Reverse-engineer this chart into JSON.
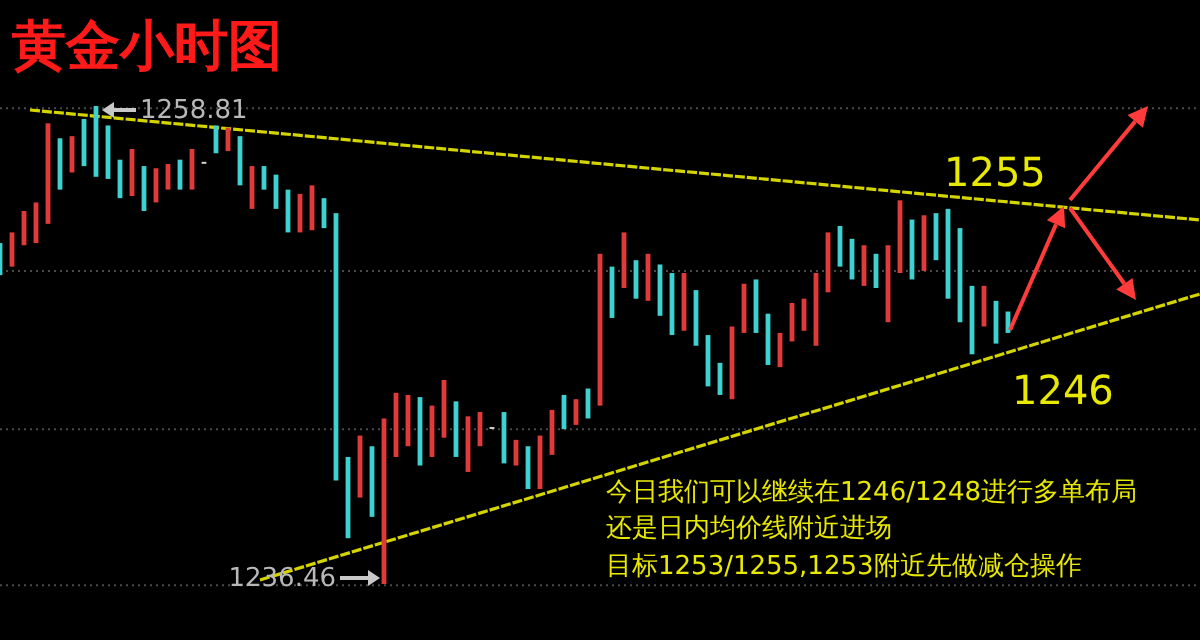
{
  "chart_data": {
    "type": "candlestick",
    "title": "黄金小时图",
    "categories": [
      null,
      null,
      null,
      null,
      null,
      null,
      null,
      null,
      null,
      null,
      null,
      null,
      null,
      null,
      null,
      null,
      null,
      null,
      null,
      null,
      null,
      null,
      null,
      null,
      null,
      null,
      null,
      null,
      null,
      null,
      null,
      null,
      null,
      null,
      null,
      null,
      null,
      null,
      null,
      null,
      null,
      null,
      null,
      null,
      null,
      null,
      null,
      null,
      null,
      null,
      null,
      null,
      null,
      null,
      null,
      null,
      null,
      null,
      null,
      null,
      null,
      null,
      null,
      null,
      null,
      null,
      null,
      null,
      null,
      null,
      null,
      null,
      null,
      null,
      null,
      null,
      null,
      null,
      null,
      null,
      null,
      null,
      null,
      null,
      null
    ],
    "ohlc": [
      [
        1252.4,
        1252.4,
        1250.9,
        1250.9
      ],
      [
        1251.3,
        1252.9,
        1251.3,
        1252.9
      ],
      [
        1252.3,
        1253.9,
        1252.3,
        1253.9
      ],
      [
        1252.4,
        1254.3,
        1252.4,
        1254.3
      ],
      [
        1253.3,
        1258.0,
        1253.3,
        1258.0
      ],
      [
        1257.3,
        1257.3,
        1254.9,
        1254.9
      ],
      [
        1255.7,
        1257.4,
        1255.7,
        1257.4
      ],
      [
        1258.2,
        1258.2,
        1256.0,
        1256.0
      ],
      [
        1258.81,
        1258.81,
        1255.5,
        1255.5
      ],
      [
        1257.9,
        1257.9,
        1255.4,
        1255.4
      ],
      [
        1256.3,
        1256.3,
        1254.5,
        1254.5
      ],
      [
        1254.6,
        1256.8,
        1254.6,
        1256.8
      ],
      [
        1256.0,
        1256.0,
        1253.9,
        1253.9
      ],
      [
        1254.3,
        1255.9,
        1254.3,
        1255.9
      ],
      [
        1254.9,
        1256.1,
        1254.9,
        1256.1
      ],
      [
        1256.3,
        1256.3,
        1254.9,
        1254.9
      ],
      [
        1254.9,
        1256.8,
        1254.9,
        1256.8
      ],
      [
        1256.2,
        1256.2,
        1256.2,
        1256.2
      ],
      [
        1257.9,
        1257.9,
        1256.6,
        1256.6
      ],
      [
        1256.7,
        1257.8,
        1256.7,
        1257.8
      ],
      [
        1257.4,
        1257.4,
        1255.1,
        1255.1
      ],
      [
        1254.0,
        1256.0,
        1254.0,
        1256.0
      ],
      [
        1256.0,
        1256.0,
        1254.9,
        1254.9
      ],
      [
        1255.6,
        1255.6,
        1254.0,
        1254.0
      ],
      [
        1254.9,
        1254.9,
        1252.9,
        1252.9
      ],
      [
        1252.9,
        1254.7,
        1252.9,
        1254.7
      ],
      [
        1253.0,
        1255.1,
        1253.0,
        1255.1
      ],
      [
        1254.5,
        1254.5,
        1253.1,
        1253.1
      ],
      [
        1253.8,
        1253.8,
        1241.3,
        1241.3
      ],
      [
        1242.4,
        1242.4,
        1238.6,
        1238.6
      ],
      [
        1240.5,
        1243.4,
        1240.5,
        1243.4
      ],
      [
        1242.9,
        1242.9,
        1239.6,
        1239.6
      ],
      [
        1236.46,
        1244.2,
        1236.46,
        1244.2
      ],
      [
        1242.4,
        1245.4,
        1242.4,
        1245.4
      ],
      [
        1242.9,
        1245.3,
        1242.9,
        1245.3
      ],
      [
        1245.2,
        1245.2,
        1242.0,
        1242.0
      ],
      [
        1242.4,
        1244.8,
        1242.4,
        1244.8
      ],
      [
        1243.3,
        1246.0,
        1243.3,
        1246.0
      ],
      [
        1245.0,
        1245.0,
        1242.4,
        1242.4
      ],
      [
        1241.7,
        1244.3,
        1241.7,
        1244.3
      ],
      [
        1242.9,
        1244.5,
        1242.9,
        1244.5
      ],
      [
        1243.8,
        1243.8,
        1243.8,
        1243.8
      ],
      [
        1244.5,
        1244.5,
        1242.1,
        1242.1
      ],
      [
        1242.0,
        1243.2,
        1242.0,
        1243.2
      ],
      [
        1242.9,
        1242.9,
        1240.9,
        1240.9
      ],
      [
        1240.9,
        1243.4,
        1240.9,
        1243.4
      ],
      [
        1242.5,
        1244.6,
        1242.5,
        1244.6
      ],
      [
        1245.3,
        1245.3,
        1243.7,
        1243.7
      ],
      [
        1243.9,
        1245.1,
        1243.9,
        1245.1
      ],
      [
        1245.6,
        1245.6,
        1244.2,
        1244.2
      ],
      [
        1244.8,
        1251.9,
        1244.8,
        1251.9
      ],
      [
        1251.3,
        1251.3,
        1248.9,
        1248.9
      ],
      [
        1250.3,
        1252.9,
        1250.3,
        1252.9
      ],
      [
        1251.6,
        1251.6,
        1249.8,
        1249.8
      ],
      [
        1249.7,
        1251.9,
        1249.7,
        1251.9
      ],
      [
        1251.4,
        1251.4,
        1249.0,
        1249.0
      ],
      [
        1251.0,
        1251.0,
        1248.1,
        1248.1
      ],
      [
        1248.3,
        1251.0,
        1248.3,
        1251.0
      ],
      [
        1250.2,
        1250.2,
        1247.6,
        1247.6
      ],
      [
        1248.1,
        1248.1,
        1245.7,
        1245.7
      ],
      [
        1246.8,
        1246.8,
        1245.3,
        1245.3
      ],
      [
        1245.1,
        1248.5,
        1245.1,
        1248.5
      ],
      [
        1248.2,
        1250.5,
        1248.2,
        1250.5
      ],
      [
        1250.7,
        1250.7,
        1248.2,
        1248.2
      ],
      [
        1249.1,
        1249.1,
        1246.7,
        1246.7
      ],
      [
        1246.6,
        1248.2,
        1246.6,
        1248.2
      ],
      [
        1247.8,
        1249.6,
        1247.8,
        1249.6
      ],
      [
        1248.3,
        1249.8,
        1248.3,
        1249.8
      ],
      [
        1247.6,
        1251.0,
        1247.6,
        1251.0
      ],
      [
        1250.1,
        1252.9,
        1250.1,
        1252.9
      ],
      [
        1253.2,
        1253.2,
        1251.3,
        1251.3
      ],
      [
        1252.6,
        1252.6,
        1250.7,
        1250.7
      ],
      [
        1250.4,
        1252.3,
        1250.4,
        1252.3
      ],
      [
        1251.9,
        1251.9,
        1250.3,
        1250.3
      ],
      [
        1248.7,
        1252.3,
        1248.7,
        1252.3
      ],
      [
        1251.0,
        1254.4,
        1251.0,
        1254.4
      ],
      [
        1253.5,
        1253.5,
        1250.7,
        1250.7
      ],
      [
        1251.1,
        1253.7,
        1251.1,
        1253.7
      ],
      [
        1253.8,
        1253.8,
        1251.6,
        1251.6
      ],
      [
        1254.0,
        1254.0,
        1249.8,
        1249.8
      ],
      [
        1253.1,
        1253.1,
        1248.7,
        1248.7
      ],
      [
        1250.4,
        1250.4,
        1247.2,
        1247.2
      ],
      [
        1248.5,
        1250.4,
        1248.5,
        1250.4
      ],
      [
        1249.7,
        1249.7,
        1247.7,
        1247.7
      ],
      [
        1249.2,
        1249.2,
        1248.2,
        1248.2
      ]
    ],
    "colors": [
      "#3fd0d0",
      "#e03a3a",
      "#e03a3a",
      "#e03a3a",
      "#e03a3a",
      "#3fd0d0",
      "#e03a3a",
      "#3fd0d0",
      "#3fd0d0",
      "#3fd0d0",
      "#3fd0d0",
      "#e03a3a",
      "#3fd0d0",
      "#e03a3a",
      "#e03a3a",
      "#3fd0d0",
      "#e03a3a",
      "#d0d0d0",
      "#3fd0d0",
      "#e03a3a",
      "#3fd0d0",
      "#e03a3a",
      "#3fd0d0",
      "#3fd0d0",
      "#3fd0d0",
      "#e03a3a",
      "#e03a3a",
      "#3fd0d0",
      "#3fd0d0",
      "#3fd0d0",
      "#e03a3a",
      "#3fd0d0",
      "#e03a3a",
      "#e03a3a",
      "#e03a3a",
      "#3fd0d0",
      "#e03a3a",
      "#e03a3a",
      "#3fd0d0",
      "#e03a3a",
      "#e03a3a",
      "#d0d0d0",
      "#3fd0d0",
      "#e03a3a",
      "#3fd0d0",
      "#e03a3a",
      "#e03a3a",
      "#3fd0d0",
      "#e03a3a",
      "#3fd0d0",
      "#e03a3a",
      "#3fd0d0",
      "#e03a3a",
      "#3fd0d0",
      "#e03a3a",
      "#3fd0d0",
      "#3fd0d0",
      "#e03a3a",
      "#3fd0d0",
      "#3fd0d0",
      "#3fd0d0",
      "#e03a3a",
      "#e03a3a",
      "#3fd0d0",
      "#3fd0d0",
      "#e03a3a",
      "#e03a3a",
      "#e03a3a",
      "#e03a3a",
      "#e03a3a",
      "#3fd0d0",
      "#3fd0d0",
      "#e03a3a",
      "#3fd0d0",
      "#e03a3a",
      "#e03a3a",
      "#3fd0d0",
      "#e03a3a",
      "#3fd0d0",
      "#3fd0d0",
      "#3fd0d0",
      "#3fd0d0",
      "#e03a3a",
      "#3fd0d0",
      "#3fd0d0"
    ],
    "yticks": [
      {
        "value": 1258.7,
        "label": null
      },
      {
        "value": 1251.1,
        "label": null
      },
      {
        "value": 1243.7,
        "label": null
      },
      {
        "value": 1236.4,
        "label": null
      }
    ],
    "grid": "y",
    "tick_labels": false,
    "annotations": [
      "1258.81",
      "1236.46",
      "1255",
      "1246",
      "今日我们可以继续在1246/1248进行多单布局",
      "还是日内均价线附近进场",
      "目标1253/1255,1253附近先做减仓操作"
    ]
  }
}
